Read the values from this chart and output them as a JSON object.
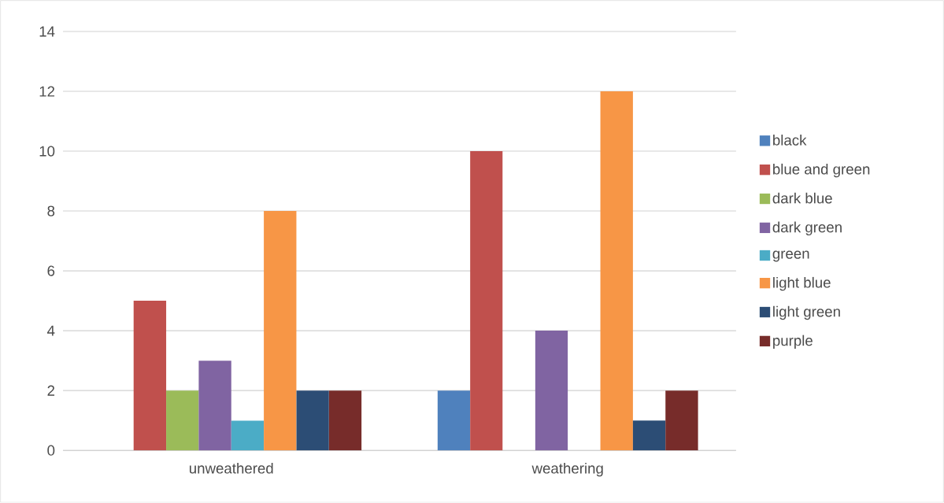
{
  "chart_data": {
    "type": "bar",
    "categories": [
      "unweathered",
      "weathering"
    ],
    "series": [
      {
        "name": "black",
        "color": "#4f81bd",
        "values": [
          0,
          2
        ]
      },
      {
        "name": "blue and green",
        "color": "#c0504d",
        "values": [
          5,
          10
        ]
      },
      {
        "name": "dark blue",
        "color": "#9bbb59",
        "values": [
          2,
          0
        ]
      },
      {
        "name": "dark green",
        "color": "#8064a2",
        "values": [
          3,
          4
        ]
      },
      {
        "name": "green",
        "color": "#4bacc6",
        "values": [
          1,
          0
        ]
      },
      {
        "name": "light blue",
        "color": "#f79646",
        "values": [
          8,
          12
        ]
      },
      {
        "name": "light green",
        "color": "#2c4d75",
        "values": [
          2,
          1
        ]
      },
      {
        "name": "purple",
        "color": "#772c2a",
        "values": [
          2,
          2
        ]
      }
    ],
    "ylim": [
      0,
      14
    ],
    "yticks": [
      0,
      2,
      4,
      6,
      8,
      10,
      12,
      14
    ],
    "grid": "y",
    "legend": "right"
  }
}
